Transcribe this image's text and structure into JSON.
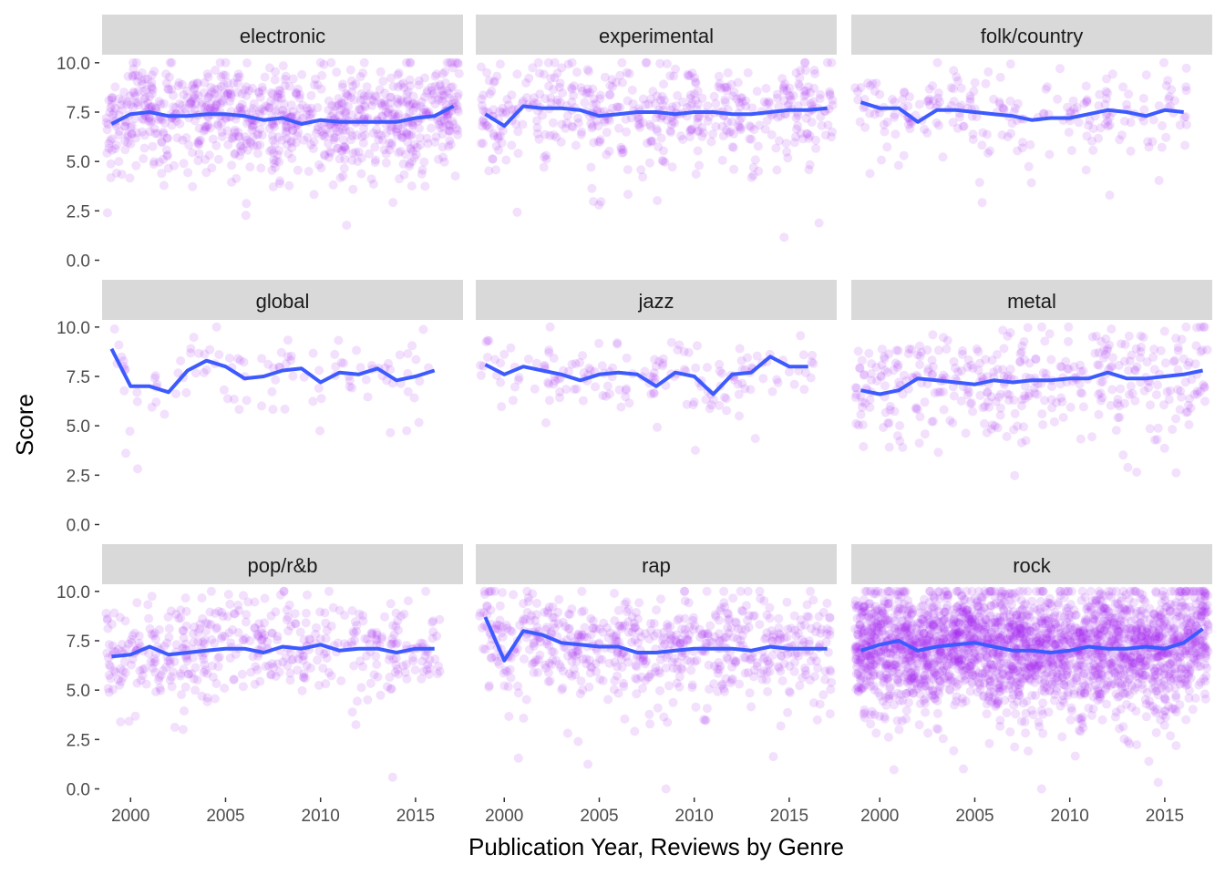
{
  "chart_data": {
    "type": "scatter",
    "xlabel": "Publication Year, Reviews by Genre",
    "ylabel": "Score",
    "xlim": [
      1998.5,
      2017.5
    ],
    "ylim": [
      -0.3,
      10.5
    ],
    "x_ticks": [
      2000,
      2005,
      2010,
      2015
    ],
    "x_tick_labels": [
      "2000",
      "2005",
      "2010",
      "2015"
    ],
    "y_ticks": [
      0,
      2.5,
      5,
      7.5,
      10
    ],
    "y_tick_labels": [
      "0.0",
      "2.5",
      "5.0",
      "7.5",
      "10.0"
    ],
    "point_color": "#a020f0",
    "line_color": "#3d5afe",
    "strip_color": "#d9d9d9",
    "grid": false,
    "legend": "none",
    "facets": [
      {
        "label": "electronic",
        "point_count": 900,
        "spread": 1.3,
        "line": [
          [
            1999,
            6.9
          ],
          [
            2000,
            7.4
          ],
          [
            2001,
            7.5
          ],
          [
            2002,
            7.3
          ],
          [
            2003,
            7.3
          ],
          [
            2004,
            7.4
          ],
          [
            2005,
            7.4
          ],
          [
            2006,
            7.3
          ],
          [
            2007,
            7.1
          ],
          [
            2008,
            7.2
          ],
          [
            2009,
            6.9
          ],
          [
            2010,
            7.1
          ],
          [
            2011,
            7.0
          ],
          [
            2012,
            7.0
          ],
          [
            2013,
            7.0
          ],
          [
            2014,
            7.0
          ],
          [
            2015,
            7.2
          ],
          [
            2016,
            7.3
          ],
          [
            2017,
            7.8
          ]
        ]
      },
      {
        "label": "experimental",
        "point_count": 500,
        "spread": 1.2,
        "line": [
          [
            1999,
            7.4
          ],
          [
            2000,
            6.8
          ],
          [
            2001,
            7.8
          ],
          [
            2002,
            7.7
          ],
          [
            2003,
            7.7
          ],
          [
            2004,
            7.6
          ],
          [
            2005,
            7.3
          ],
          [
            2006,
            7.4
          ],
          [
            2007,
            7.5
          ],
          [
            2008,
            7.5
          ],
          [
            2009,
            7.4
          ],
          [
            2010,
            7.5
          ],
          [
            2011,
            7.5
          ],
          [
            2012,
            7.4
          ],
          [
            2013,
            7.4
          ],
          [
            2014,
            7.5
          ],
          [
            2015,
            7.6
          ],
          [
            2016,
            7.6
          ],
          [
            2017,
            7.7
          ]
        ]
      },
      {
        "label": "folk/country",
        "point_count": 230,
        "spread": 1.0,
        "line": [
          [
            1999,
            8.0
          ],
          [
            2000,
            7.7
          ],
          [
            2001,
            7.7
          ],
          [
            2002,
            7.0
          ],
          [
            2003,
            7.6
          ],
          [
            2004,
            7.6
          ],
          [
            2005,
            7.5
          ],
          [
            2006,
            7.4
          ],
          [
            2007,
            7.3
          ],
          [
            2008,
            7.1
          ],
          [
            2009,
            7.2
          ],
          [
            2010,
            7.2
          ],
          [
            2011,
            7.4
          ],
          [
            2012,
            7.6
          ],
          [
            2013,
            7.5
          ],
          [
            2014,
            7.3
          ],
          [
            2015,
            7.6
          ],
          [
            2016,
            7.5
          ]
        ]
      },
      {
        "label": "global",
        "point_count": 110,
        "spread": 0.9,
        "line": [
          [
            1999,
            8.9
          ],
          [
            2000,
            7.0
          ],
          [
            2001,
            7.0
          ],
          [
            2002,
            6.7
          ],
          [
            2003,
            7.8
          ],
          [
            2004,
            8.3
          ],
          [
            2005,
            8.0
          ],
          [
            2006,
            7.4
          ],
          [
            2007,
            7.5
          ],
          [
            2008,
            7.8
          ],
          [
            2009,
            7.9
          ],
          [
            2010,
            7.2
          ],
          [
            2011,
            7.7
          ],
          [
            2012,
            7.6
          ],
          [
            2013,
            7.9
          ],
          [
            2014,
            7.3
          ],
          [
            2015,
            7.5
          ],
          [
            2016,
            7.8
          ]
        ]
      },
      {
        "label": "jazz",
        "point_count": 170,
        "spread": 1.0,
        "line": [
          [
            1999,
            8.1
          ],
          [
            2000,
            7.6
          ],
          [
            2001,
            8.0
          ],
          [
            2002,
            7.8
          ],
          [
            2003,
            7.6
          ],
          [
            2004,
            7.3
          ],
          [
            2005,
            7.6
          ],
          [
            2006,
            7.7
          ],
          [
            2007,
            7.6
          ],
          [
            2008,
            7.0
          ],
          [
            2009,
            7.7
          ],
          [
            2010,
            7.5
          ],
          [
            2011,
            6.6
          ],
          [
            2012,
            7.6
          ],
          [
            2013,
            7.7
          ],
          [
            2014,
            8.5
          ],
          [
            2015,
            8.0
          ],
          [
            2016,
            8.0
          ]
        ]
      },
      {
        "label": "metal",
        "point_count": 400,
        "spread": 1.3,
        "line": [
          [
            1999,
            6.8
          ],
          [
            2000,
            6.6
          ],
          [
            2001,
            6.8
          ],
          [
            2002,
            7.4
          ],
          [
            2003,
            7.3
          ],
          [
            2004,
            7.2
          ],
          [
            2005,
            7.1
          ],
          [
            2006,
            7.3
          ],
          [
            2007,
            7.2
          ],
          [
            2008,
            7.3
          ],
          [
            2009,
            7.3
          ],
          [
            2010,
            7.4
          ],
          [
            2011,
            7.4
          ],
          [
            2012,
            7.7
          ],
          [
            2013,
            7.4
          ],
          [
            2014,
            7.4
          ],
          [
            2015,
            7.5
          ],
          [
            2016,
            7.6
          ],
          [
            2017,
            7.8
          ]
        ]
      },
      {
        "label": "pop/r&b",
        "point_count": 450,
        "spread": 1.3,
        "line": [
          [
            1999,
            6.7
          ],
          [
            2000,
            6.8
          ],
          [
            2001,
            7.2
          ],
          [
            2002,
            6.8
          ],
          [
            2003,
            6.9
          ],
          [
            2004,
            7.0
          ],
          [
            2005,
            7.1
          ],
          [
            2006,
            7.1
          ],
          [
            2007,
            6.9
          ],
          [
            2008,
            7.2
          ],
          [
            2009,
            7.1
          ],
          [
            2010,
            7.3
          ],
          [
            2011,
            7.0
          ],
          [
            2012,
            7.1
          ],
          [
            2013,
            7.1
          ],
          [
            2014,
            6.9
          ],
          [
            2015,
            7.1
          ],
          [
            2016,
            7.1
          ]
        ]
      },
      {
        "label": "rap",
        "point_count": 650,
        "spread": 1.3,
        "line": [
          [
            1999,
            8.7
          ],
          [
            2000,
            6.5
          ],
          [
            2001,
            8.0
          ],
          [
            2002,
            7.8
          ],
          [
            2003,
            7.4
          ],
          [
            2004,
            7.3
          ],
          [
            2005,
            7.2
          ],
          [
            2006,
            7.2
          ],
          [
            2007,
            6.9
          ],
          [
            2008,
            6.9
          ],
          [
            2009,
            7.0
          ],
          [
            2010,
            7.1
          ],
          [
            2011,
            7.1
          ],
          [
            2012,
            7.1
          ],
          [
            2013,
            7.0
          ],
          [
            2014,
            7.2
          ],
          [
            2015,
            7.1
          ],
          [
            2016,
            7.1
          ],
          [
            2017,
            7.1
          ]
        ]
      },
      {
        "label": "rock",
        "point_count": 2600,
        "spread": 1.5,
        "line": [
          [
            1999,
            7.0
          ],
          [
            2000,
            7.3
          ],
          [
            2001,
            7.5
          ],
          [
            2002,
            7.0
          ],
          [
            2003,
            7.2
          ],
          [
            2004,
            7.3
          ],
          [
            2005,
            7.4
          ],
          [
            2006,
            7.2
          ],
          [
            2007,
            7.0
          ],
          [
            2008,
            7.0
          ],
          [
            2009,
            6.9
          ],
          [
            2010,
            7.0
          ],
          [
            2011,
            7.2
          ],
          [
            2012,
            7.1
          ],
          [
            2013,
            7.1
          ],
          [
            2014,
            7.2
          ],
          [
            2015,
            7.1
          ],
          [
            2016,
            7.4
          ],
          [
            2017,
            8.1
          ]
        ]
      }
    ]
  }
}
